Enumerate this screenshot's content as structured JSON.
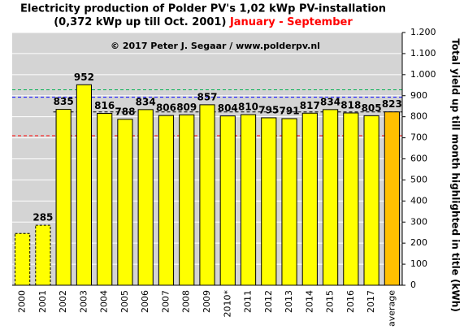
{
  "chart_data": {
    "type": "bar",
    "title": "Electricity production  of Polder PV's 1,02 kWp PV-installation",
    "subtitle": "(0,372 kWp up till Oct. 2001)",
    "period": "January - September",
    "period_color": "#ff0000",
    "copyright": "© 2017 Peter J. Segaar / www.polderpv.nl",
    "y_label": "Total yield up till month highlighted in title (kWh)",
    "categories": [
      "2000",
      "2001",
      "2002",
      "2003",
      "2004",
      "2005",
      "2006",
      "2007",
      "2008",
      "2009",
      "2010*",
      "2011",
      "2012",
      "2013",
      "2014",
      "2015",
      "2016",
      "2017",
      "average"
    ],
    "values": [
      246,
      285,
      835,
      952,
      816,
      788,
      834,
      806,
      809,
      857,
      804,
      810,
      795,
      791,
      817,
      834,
      818,
      805,
      823
    ],
    "value_labels": [
      null,
      "285",
      "835",
      "952",
      "816",
      "788",
      "834",
      "806",
      "809",
      "857",
      "804",
      "810",
      "795",
      "791",
      "817",
      "834",
      "818",
      "805",
      "823"
    ],
    "colors": [
      "#ffff00",
      "#ffff00",
      "#ffff00",
      "#ffff00",
      "#ffff00",
      "#ffff00",
      "#ffff00",
      "#ffff00",
      "#ffff00",
      "#ffff00",
      "#ffff00",
      "#ffff00",
      "#ffff00",
      "#ffff00",
      "#ffff00",
      "#ffff00",
      "#ffff00",
      "#ffff00",
      "#ffc000"
    ],
    "dashed": [
      true,
      true,
      false,
      false,
      false,
      false,
      false,
      false,
      false,
      false,
      false,
      false,
      false,
      false,
      false,
      false,
      false,
      false,
      false
    ],
    "label_colors": [
      "#000000",
      "#000000",
      "#000000",
      "#000000",
      "#000000",
      "#000000",
      "#000000",
      "#000000",
      "#000000",
      "#000000",
      "#000000",
      "#000000",
      "#000000",
      "#000000",
      "#000000",
      "#000000",
      "#000000",
      "#000000",
      "#ff0000"
    ],
    "reference_lines": [
      {
        "value": 928,
        "color": "#00b050"
      },
      {
        "value": 893,
        "color": "#0000ff"
      },
      {
        "value": 823,
        "color": "#000000"
      },
      {
        "value": 710,
        "color": "#ff0000"
      }
    ],
    "ylim": [
      0,
      1200
    ],
    "yticks": [
      0,
      100,
      200,
      300,
      400,
      500,
      600,
      700,
      800,
      900,
      {
        "value": 1000,
        "label": "1.000"
      },
      {
        "value": 1100,
        "label": "1.100"
      },
      {
        "value": 1200,
        "label": "1.200"
      }
    ],
    "grid": true,
    "plot_background": "#d4d4d4"
  }
}
